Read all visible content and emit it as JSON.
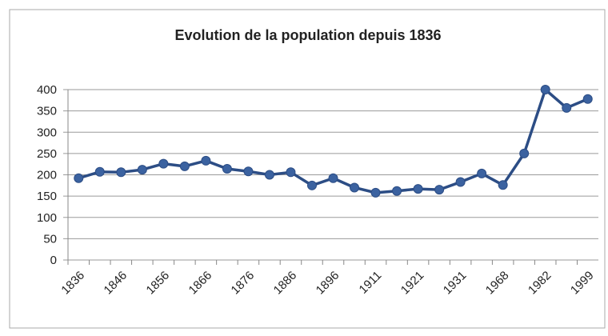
{
  "chart_data": {
    "type": "line",
    "title": "Evolution de la population depuis 1836",
    "categories": [
      "1836",
      null,
      "1846",
      null,
      "1856",
      null,
      "1866",
      null,
      "1876",
      null,
      "1886",
      null,
      "1896",
      null,
      "1911",
      null,
      "1921",
      null,
      "1931",
      null,
      "1968",
      null,
      "1982",
      null,
      "1999"
    ],
    "values": [
      192,
      207,
      206,
      212,
      226,
      220,
      233,
      214,
      208,
      200,
      206,
      175,
      192,
      170,
      158,
      162,
      167,
      165,
      183,
      203,
      176,
      250,
      400,
      357,
      378
    ],
    "color": "#2c4d85",
    "ylim": [
      0,
      400
    ],
    "yticks": [
      0,
      50,
      100,
      150,
      200,
      250,
      300,
      350,
      400
    ],
    "grid": true
  }
}
